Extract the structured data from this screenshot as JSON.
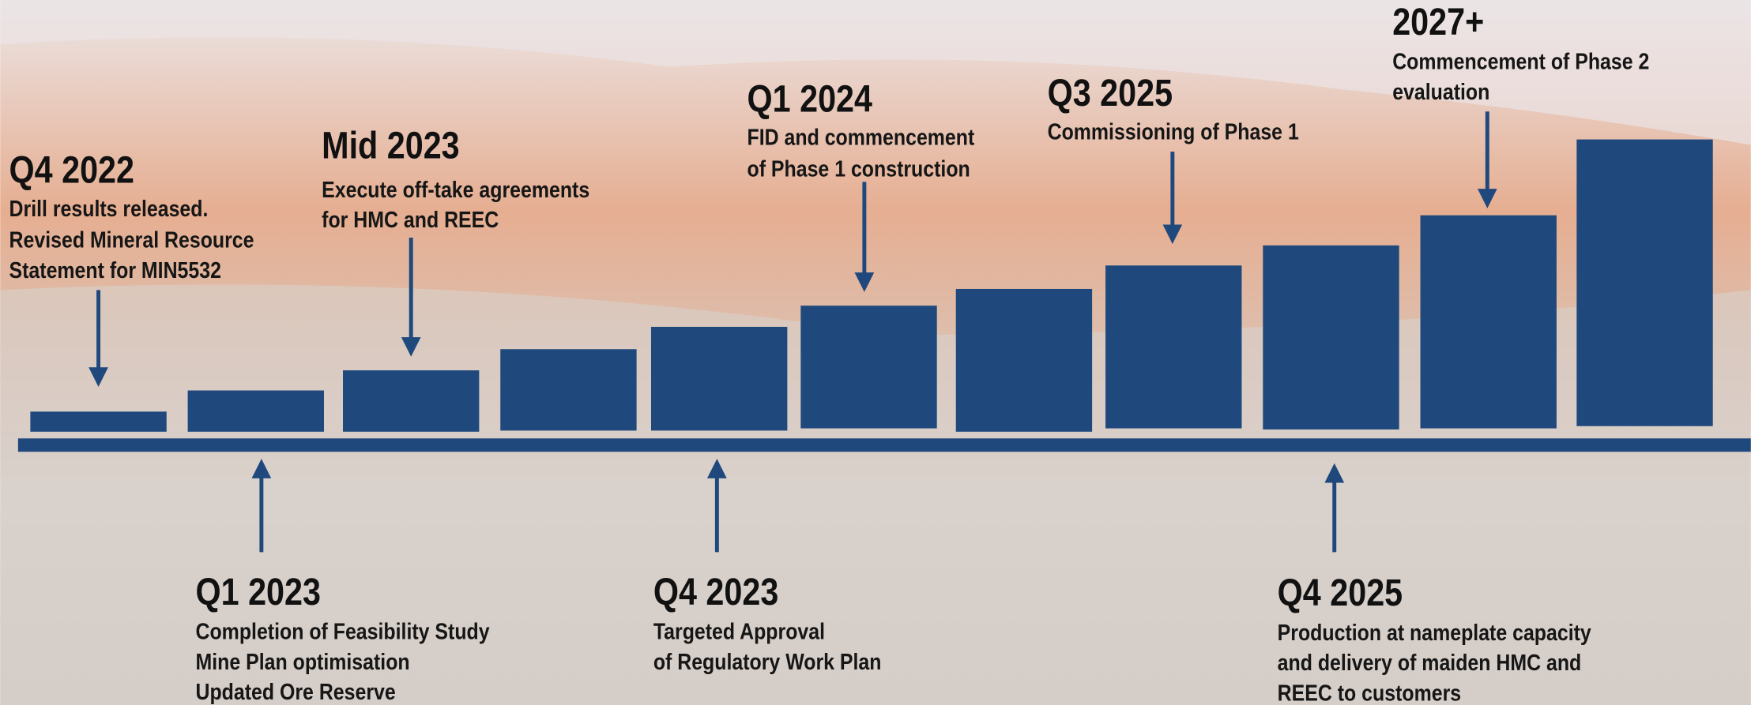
{
  "milestones": [
    {
      "date": "Q4 2022",
      "lines": [
        "Drill results released.",
        "Revised Mineral Resource",
        "Statement for MIN5532"
      ]
    },
    {
      "date": "Q1 2023",
      "lines": [
        "Completion of Feasibility Study",
        "Mine Plan optimisation",
        "Updated Ore Reserve"
      ]
    },
    {
      "date": "Mid 2023",
      "lines": [
        "Execute off-take agreements",
        "for HMC and REEC"
      ]
    },
    {
      "date": "Q4 2023",
      "lines": [
        "Targeted Approval",
        "of Regulatory Work Plan"
      ]
    },
    {
      "date": "Q1 2024",
      "lines": [
        "FID and commencement",
        "of Phase 1 construction"
      ]
    },
    {
      "date": "Q3 2025",
      "lines": [
        "Commissioning of Phase 1"
      ]
    },
    {
      "date": "Q4 2025",
      "lines": [
        "Production at nameplate capacity",
        "and delivery of maiden HMC and",
        "REEC to customers"
      ]
    },
    {
      "date": "2027+",
      "lines": [
        "Commencement of Phase 2",
        "evaluation"
      ]
    }
  ]
}
